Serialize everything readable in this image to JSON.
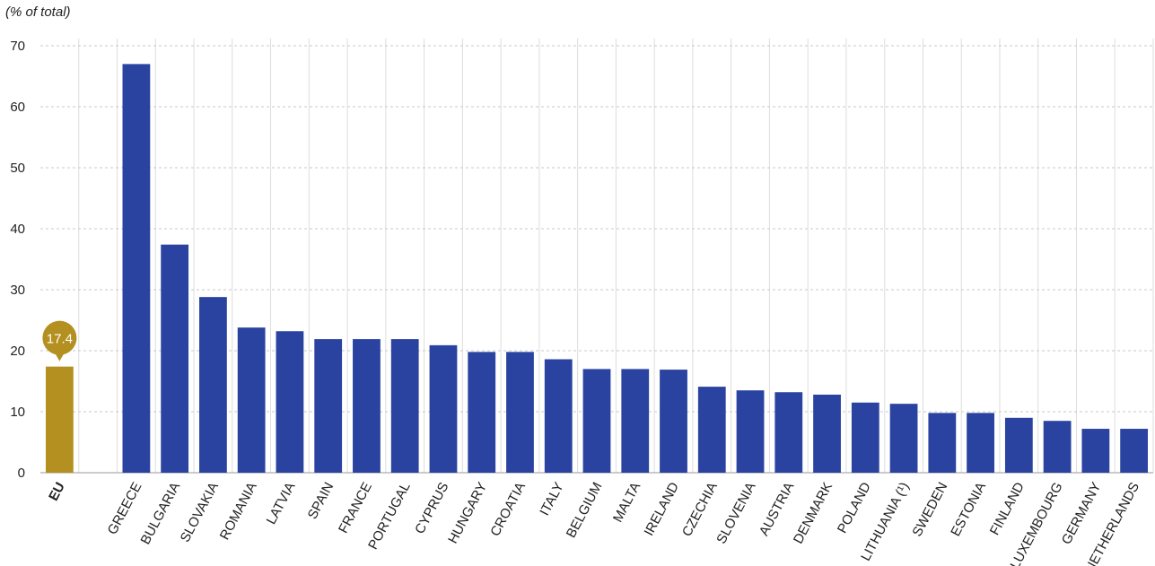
{
  "chart_data": {
    "type": "bar",
    "y_label": "(% of total)",
    "categories": [
      "EU",
      null,
      "GREECE",
      "BULGARIA",
      "SLOVAKIA",
      "ROMANIA",
      "LATVIA",
      "SPAIN",
      "FRANCE",
      "PORTUGAL",
      "CYPRUS",
      "HUNGARY",
      "CROATIA",
      "ITALY",
      "BELGIUM",
      "MALTA",
      "IRELAND",
      "CZECHIA",
      "SLOVENIA",
      "AUSTRIA",
      "DENMARK",
      "POLAND",
      "LITHUANIA (¹)",
      "SWEDEN",
      "ESTONIA",
      "FINLAND",
      "LUXEMBOURG",
      "GERMANY",
      "NETHERLANDS"
    ],
    "values": [
      17.4,
      null,
      67.0,
      37.4,
      28.8,
      23.8,
      23.2,
      21.9,
      21.9,
      21.9,
      20.9,
      19.8,
      19.8,
      18.6,
      17.0,
      17.0,
      16.9,
      14.1,
      13.5,
      13.2,
      12.8,
      11.5,
      11.3,
      9.8,
      9.8,
      9.0,
      8.5,
      7.2,
      7.2
    ],
    "colors": [
      "#b39020",
      null,
      "#2a43a0",
      "#2a43a0",
      "#2a43a0",
      "#2a43a0",
      "#2a43a0",
      "#2a43a0",
      "#2a43a0",
      "#2a43a0",
      "#2a43a0",
      "#2a43a0",
      "#2a43a0",
      "#2a43a0",
      "#2a43a0",
      "#2a43a0",
      "#2a43a0",
      "#2a43a0",
      "#2a43a0",
      "#2a43a0",
      "#2a43a0",
      "#2a43a0",
      "#2a43a0",
      "#2a43a0",
      "#2a43a0",
      "#2a43a0",
      "#2a43a0",
      "#2a43a0",
      "#2a43a0"
    ],
    "labeled": [
      0
    ],
    "ylim": [
      0,
      70
    ],
    "yticks": [
      0,
      10,
      20,
      30,
      40,
      50,
      60,
      70
    ],
    "grid": true
  }
}
